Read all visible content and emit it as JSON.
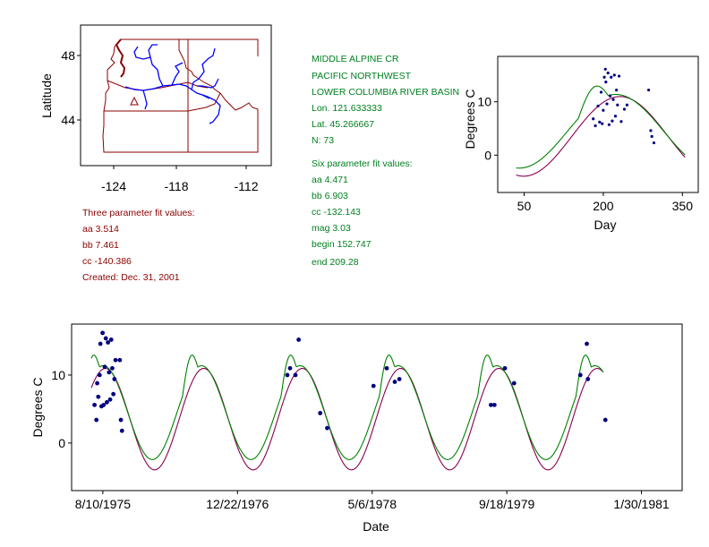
{
  "colors": {
    "green_fit": "#008000",
    "purple_fit": "#8b0050",
    "points": "#000080",
    "map_border": "#8b0000",
    "rivers": "#0000ff",
    "info_green": "#00801f",
    "info_red": "#8b0000"
  },
  "map": {
    "ylabel": "Latitude",
    "yticks": [
      "48",
      "44"
    ],
    "xticks": [
      "-124",
      "-118",
      "-112"
    ],
    "marker_icon": "triangle-icon"
  },
  "station": {
    "lines": [
      "MIDDLE ALPINE CR",
      "PACIFIC NORTHWEST",
      "LOWER COLUMBIA RIVER BASIN",
      "Lon. 121.633333",
      "Lat. 45.266667",
      "N: 73"
    ]
  },
  "six_param": {
    "lines": [
      "Six parameter fit values:",
      "aa 4.471",
      "bb 6.903",
      "cc -132.143",
      "mag 3.03",
      "begin 152.747",
      "end 209.28"
    ]
  },
  "three_param": {
    "lines": [
      "Three parameter fit values:",
      "aa 3.514",
      "bb 7.461",
      "cc -140.386",
      "Created:   Dec. 31, 2001"
    ]
  },
  "chart_data": [
    {
      "type": "scatter",
      "xlabel": "Day",
      "ylabel": "Degrees C",
      "xticks": [
        "50",
        "200",
        "350"
      ],
      "yticks": [
        "0",
        "10"
      ],
      "xlim": [
        0,
        380
      ],
      "ylim": [
        -7,
        18.5
      ],
      "fit_range": [
        35,
        355
      ],
      "points": [
        [
          181,
          6.8
        ],
        [
          185,
          5.5
        ],
        [
          190,
          9.2
        ],
        [
          193,
          6.2
        ],
        [
          196,
          11.8
        ],
        [
          198,
          5.9
        ],
        [
          200,
          8.4
        ],
        [
          202,
          14.6
        ],
        [
          204,
          16.1
        ],
        [
          205,
          13.7
        ],
        [
          207,
          9.6
        ],
        [
          209,
          15.4
        ],
        [
          211,
          5.7
        ],
        [
          213,
          11.1
        ],
        [
          215,
          14.6
        ],
        [
          217,
          6.4
        ],
        [
          219,
          10.4
        ],
        [
          221,
          15.0
        ],
        [
          223,
          7.3
        ],
        [
          225,
          12.2
        ],
        [
          227,
          9.4
        ],
        [
          230,
          14.8
        ],
        [
          234,
          6.3
        ],
        [
          240,
          8.6
        ],
        [
          245,
          9.4
        ],
        [
          286,
          12.2
        ],
        [
          290,
          4.6
        ],
        [
          292,
          3.5
        ],
        [
          296,
          2.3
        ]
      ],
      "series": [
        {
          "name": "",
          "model": "three_param",
          "color": "#8b0050"
        },
        {
          "name": "",
          "model": "six_param",
          "color": "#008000"
        }
      ]
    },
    {
      "type": "scatter",
      "xlabel": "Date",
      "ylabel": "Degrees C",
      "xticks": [
        "8/10/1975",
        "12/22/1976",
        "5/6/1978",
        "9/18/1979",
        "1/30/1981"
      ],
      "yticks": [
        "0",
        "10"
      ],
      "xlim": [
        "1975-04-16",
        "1981-06-30"
      ],
      "ylim": [
        -7,
        17.5
      ],
      "fit_range": [
        "1975-06-28",
        "1980-09-10"
      ],
      "points": [
        [
          "1975-07-10",
          5.6
        ],
        [
          "1975-07-17",
          3.4
        ],
        [
          "1975-07-20",
          8.8
        ],
        [
          "1975-07-24",
          6.8
        ],
        [
          "1975-07-29",
          10.0
        ],
        [
          "1975-08-01",
          14.6
        ],
        [
          "1975-08-05",
          5.4
        ],
        [
          "1975-08-09",
          16.2
        ],
        [
          "1975-08-13",
          5.6
        ],
        [
          "1975-08-17",
          11.2
        ],
        [
          "1975-08-21",
          15.4
        ],
        [
          "1975-08-25",
          6.0
        ],
        [
          "1975-08-29",
          14.8
        ],
        [
          "1975-09-02",
          10.4
        ],
        [
          "1975-09-06",
          6.4
        ],
        [
          "1975-09-10",
          15.2
        ],
        [
          "1975-09-14",
          11.0
        ],
        [
          "1975-09-18",
          7.2
        ],
        [
          "1975-09-22",
          9.4
        ],
        [
          "1975-09-26",
          12.2
        ],
        [
          "1975-10-12",
          12.2
        ],
        [
          "1975-10-16",
          3.4
        ],
        [
          "1975-10-20",
          1.8
        ],
        [
          "1977-06-25",
          10.0
        ],
        [
          "1977-07-05",
          11.0
        ],
        [
          "1977-07-25",
          10.0
        ],
        [
          "1977-08-06",
          15.2
        ],
        [
          "1977-10-25",
          4.4
        ],
        [
          "1977-11-20",
          2.2
        ],
        [
          "1978-05-11",
          8.4
        ],
        [
          "1978-06-29",
          11.0
        ],
        [
          "1978-07-29",
          9.0
        ],
        [
          "1978-08-15",
          9.4
        ],
        [
          "1979-07-21",
          5.6
        ],
        [
          "1979-08-03",
          5.6
        ],
        [
          "1979-09-11",
          11.0
        ],
        [
          "1979-10-15",
          8.8
        ],
        [
          "1980-06-17",
          10.0
        ],
        [
          "1980-07-11",
          14.6
        ],
        [
          "1980-07-15",
          9.4
        ],
        [
          "1980-09-18",
          3.4
        ]
      ],
      "series": [
        {
          "name": "",
          "model": "three_param",
          "color": "#8b0050"
        },
        {
          "name": "",
          "model": "six_param",
          "color": "#008000"
        }
      ]
    }
  ]
}
